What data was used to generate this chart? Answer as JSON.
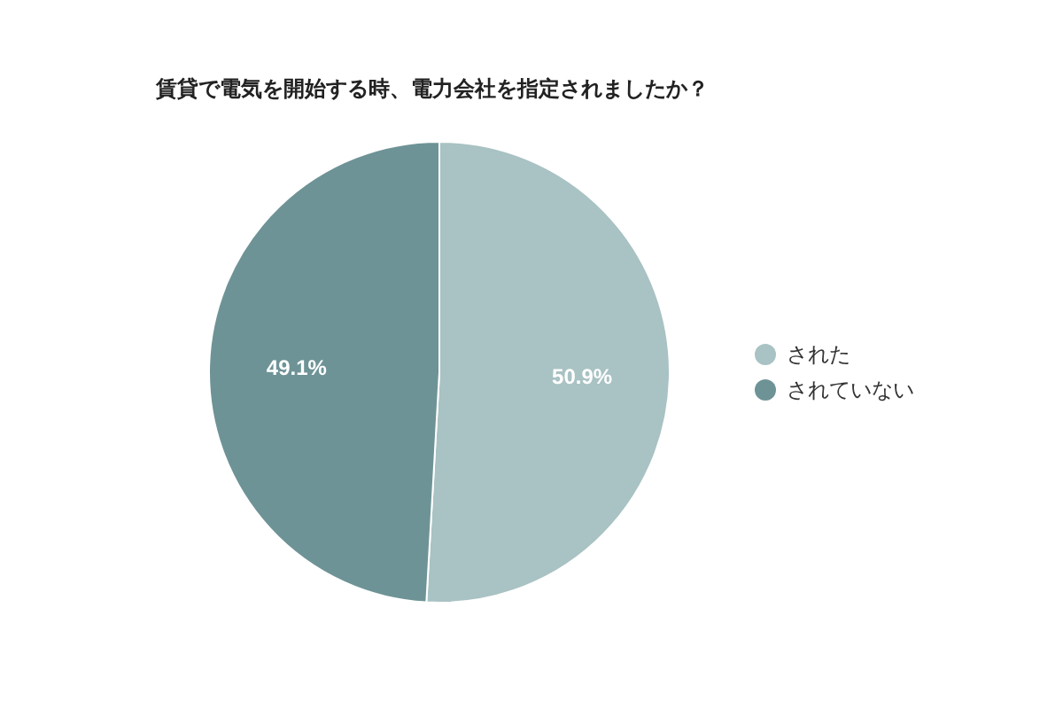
{
  "chart_data": {
    "type": "pie",
    "title": "賃貸で電気を開始する時、電力会社を指定されましたか？",
    "categories": [
      "された",
      "されていない"
    ],
    "values": [
      50.9,
      49.1
    ],
    "colors": [
      "#a9c2c3",
      "#6e9396"
    ],
    "value_labels": [
      "50.9%",
      "49.1%"
    ],
    "legend": "right"
  }
}
